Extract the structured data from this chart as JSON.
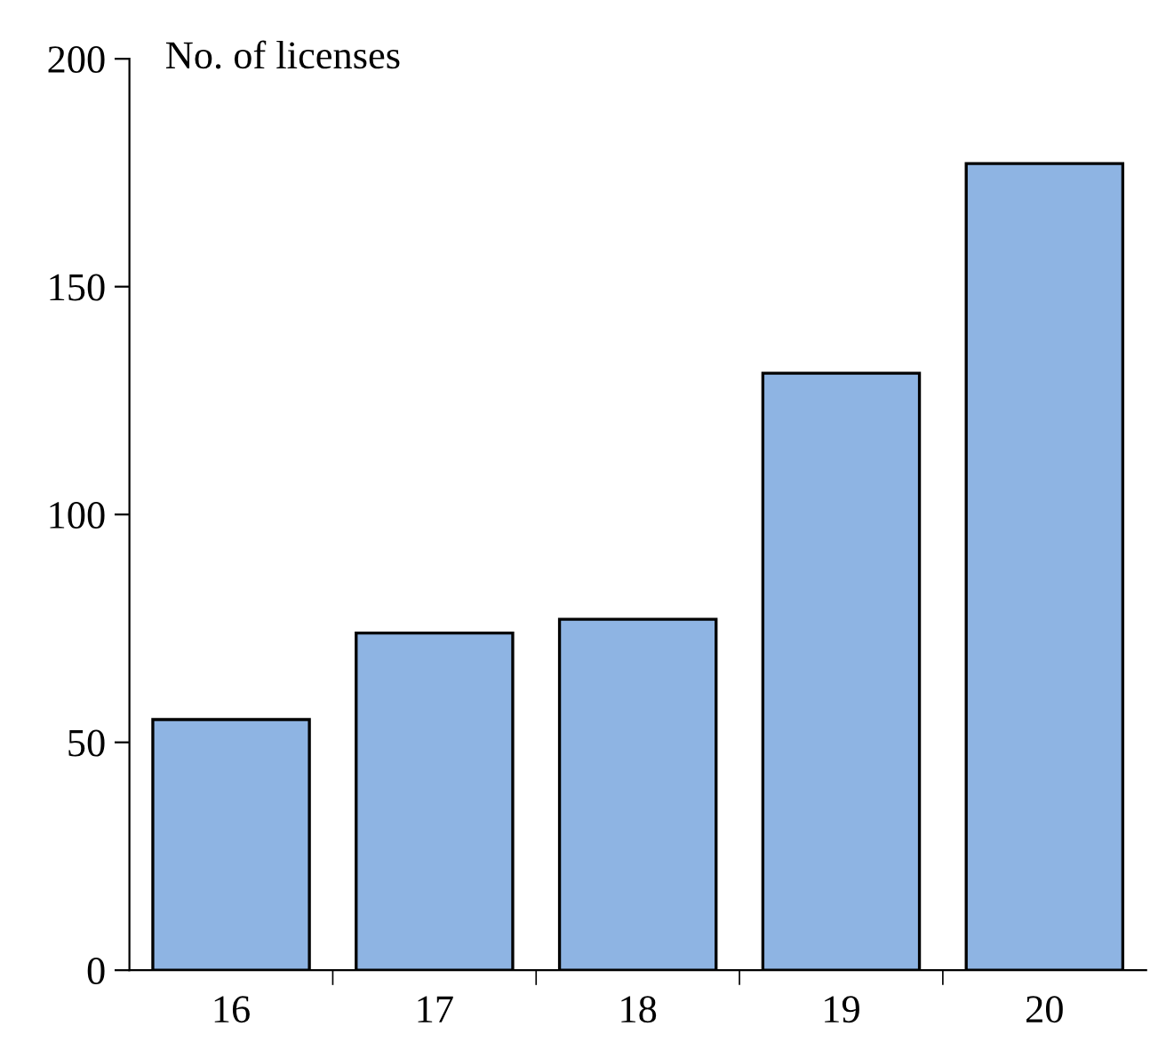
{
  "chart_data": {
    "type": "bar",
    "ylabel": "No. of licenses",
    "categories": [
      "16",
      "17",
      "18",
      "19",
      "20"
    ],
    "values": [
      55,
      74,
      77,
      131,
      177
    ],
    "color": "#8eb4e3",
    "ylim": [
      0,
      200
    ],
    "yticks": [
      0,
      50,
      100,
      150,
      200
    ],
    "grid": false,
    "legend": false
  }
}
